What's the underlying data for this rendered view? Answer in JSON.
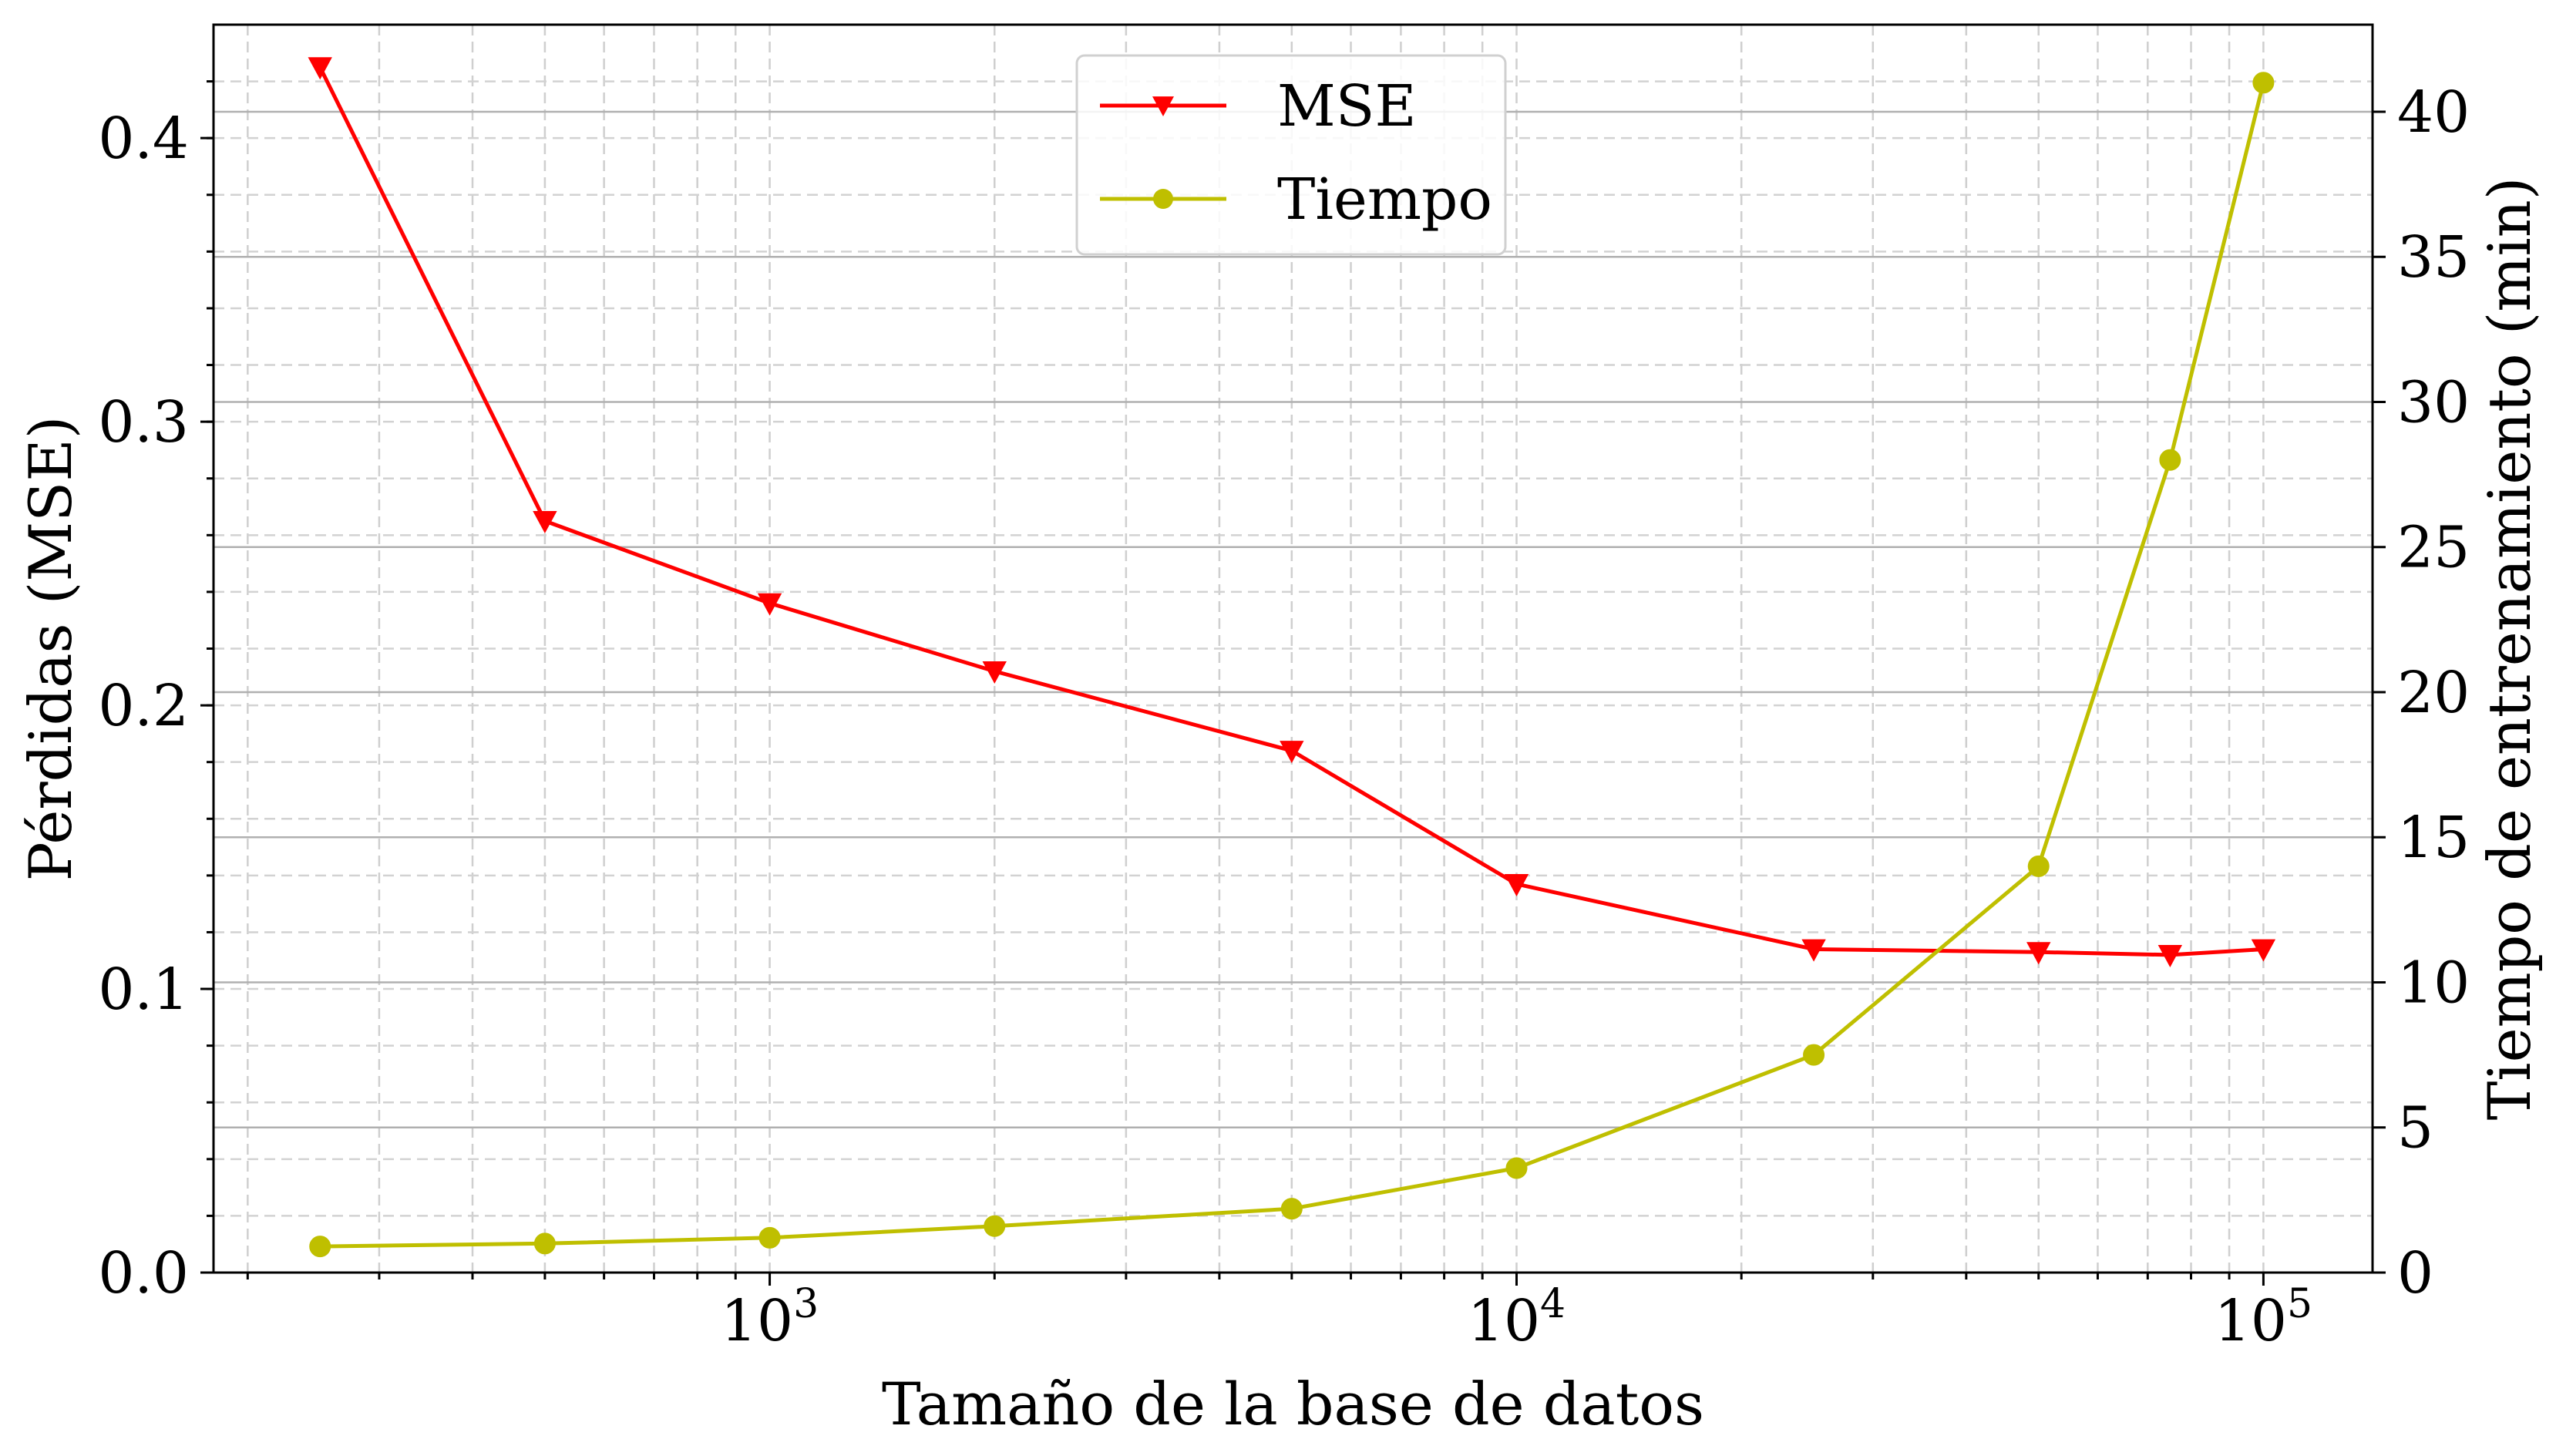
{
  "chart_data": {
    "type": "line",
    "xlabel": "Tamaño de la base de datos",
    "ylabel_left": "Pérdidas (MSE)",
    "ylabel_right": "Tiempo de entrenamiento (min)",
    "x_scale": "log",
    "xlim": [
      180,
      140000
    ],
    "ylim_left": [
      0.0,
      0.44
    ],
    "ylim_right": [
      0,
      43
    ],
    "x_ticks": [
      {
        "value": 1000,
        "base": "10",
        "exp": "3"
      },
      {
        "value": 10000,
        "base": "10",
        "exp": "4"
      },
      {
        "value": 100000,
        "base": "10",
        "exp": "5"
      }
    ],
    "y_ticks_left": [
      {
        "value": 0.0,
        "label": "0.0"
      },
      {
        "value": 0.1,
        "label": "0.1"
      },
      {
        "value": 0.2,
        "label": "0.2"
      },
      {
        "value": 0.3,
        "label": "0.3"
      },
      {
        "value": 0.4,
        "label": "0.4"
      }
    ],
    "y_ticks_right": [
      {
        "value": 0,
        "label": "0"
      },
      {
        "value": 5,
        "label": "5"
      },
      {
        "value": 10,
        "label": "10"
      },
      {
        "value": 15,
        "label": "15"
      },
      {
        "value": 20,
        "label": "20"
      },
      {
        "value": 25,
        "label": "25"
      },
      {
        "value": 30,
        "label": "30"
      },
      {
        "value": 35,
        "label": "35"
      },
      {
        "value": 40,
        "label": "40"
      }
    ],
    "grid": true,
    "legend_position": "top-center",
    "series": [
      {
        "name": "MSE",
        "axis": "left",
        "color": "#ff0000",
        "marker": "triangle-down",
        "x": [
          250,
          500,
          1000,
          2000,
          5000,
          10000,
          25000,
          50000,
          75000,
          100000
        ],
        "y": [
          0.425,
          0.265,
          0.236,
          0.212,
          0.184,
          0.137,
          0.114,
          0.113,
          0.112,
          0.114
        ]
      },
      {
        "name": "Tiempo",
        "axis": "right",
        "color": "#bfbf00",
        "marker": "circle",
        "x": [
          250,
          500,
          1000,
          2000,
          5000,
          10000,
          25000,
          50000,
          75000,
          100000
        ],
        "y": [
          0.9,
          1.0,
          1.2,
          1.6,
          2.2,
          3.6,
          7.5,
          14.0,
          28.0,
          41.0
        ]
      }
    ]
  }
}
